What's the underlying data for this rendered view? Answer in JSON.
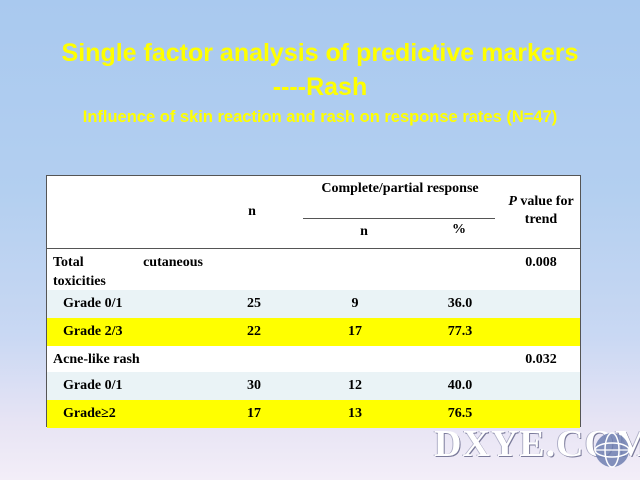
{
  "slide": {
    "title_line1": "Single factor analysis of predictive markers",
    "title_line2": "----Rash",
    "subtitle": "Influence of skin reaction and rash on response rates (N=47)"
  },
  "table": {
    "headers": {
      "n": "n",
      "complete_partial": "Complete/partial response",
      "sub_n": "n",
      "sub_pct": "%",
      "p_value_italic": "P",
      "p_value_rest": " value for trend"
    },
    "sections": [
      {
        "label_word1": "Total",
        "label_word2": "cutaneous",
        "label_line2": "toxicities",
        "p_value": "0.008",
        "rows": [
          {
            "label": "Grade 0/1",
            "n": "25",
            "cr_n": "9",
            "pct": "36.0",
            "highlight": "light"
          },
          {
            "label": "Grade 2/3",
            "n": "22",
            "cr_n": "17",
            "pct": "77.3",
            "highlight": "yellow"
          }
        ]
      },
      {
        "label": "Acne-like rash",
        "p_value": "0.032",
        "rows": [
          {
            "label": "Grade 0/1",
            "n": "30",
            "cr_n": "12",
            "pct": "40.0",
            "highlight": "light"
          },
          {
            "label": "Grade≥2",
            "n": "17",
            "cr_n": "13",
            "pct": "76.5",
            "highlight": "yellow"
          }
        ]
      }
    ]
  },
  "watermark": {
    "text": "DXYE.COM",
    "logo_icon": "globe-logo-icon"
  },
  "colors": {
    "title": "#ffff00",
    "row_light": "#eaf3f6",
    "row_yellow": "#ffff00"
  }
}
